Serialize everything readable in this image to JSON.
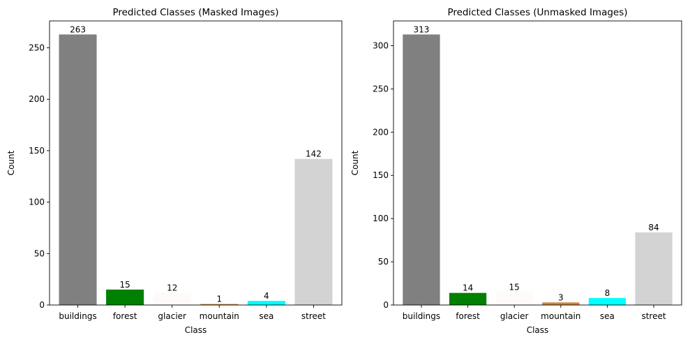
{
  "chart_data": [
    {
      "type": "bar",
      "title": "Predicted Classes (Masked Images)",
      "xlabel": "Class",
      "ylabel": "Count",
      "categories": [
        "buildings",
        "forest",
        "glacier",
        "mountain",
        "sea",
        "street"
      ],
      "values": [
        263,
        15,
        12,
        1,
        4,
        142
      ],
      "colors": [
        "#808080",
        "#008000",
        "#fffafa",
        "#cd853f",
        "#00ffff",
        "#d3d3d3"
      ],
      "yticks": [
        0,
        50,
        100,
        150,
        200,
        250
      ],
      "ylim": [
        0,
        276.15
      ],
      "grid": false,
      "legend": "none"
    },
    {
      "type": "bar",
      "title": "Predicted Classes (Unmasked Images)",
      "xlabel": "Class",
      "ylabel": "Count",
      "categories": [
        "buildings",
        "forest",
        "glacier",
        "mountain",
        "sea",
        "street"
      ],
      "values": [
        313,
        14,
        15,
        3,
        8,
        84
      ],
      "colors": [
        "#808080",
        "#008000",
        "#fffafa",
        "#cd853f",
        "#00ffff",
        "#d3d3d3"
      ],
      "yticks": [
        0,
        50,
        100,
        150,
        200,
        250,
        300
      ],
      "ylim": [
        0,
        328.65
      ],
      "grid": false,
      "legend": "none"
    }
  ]
}
